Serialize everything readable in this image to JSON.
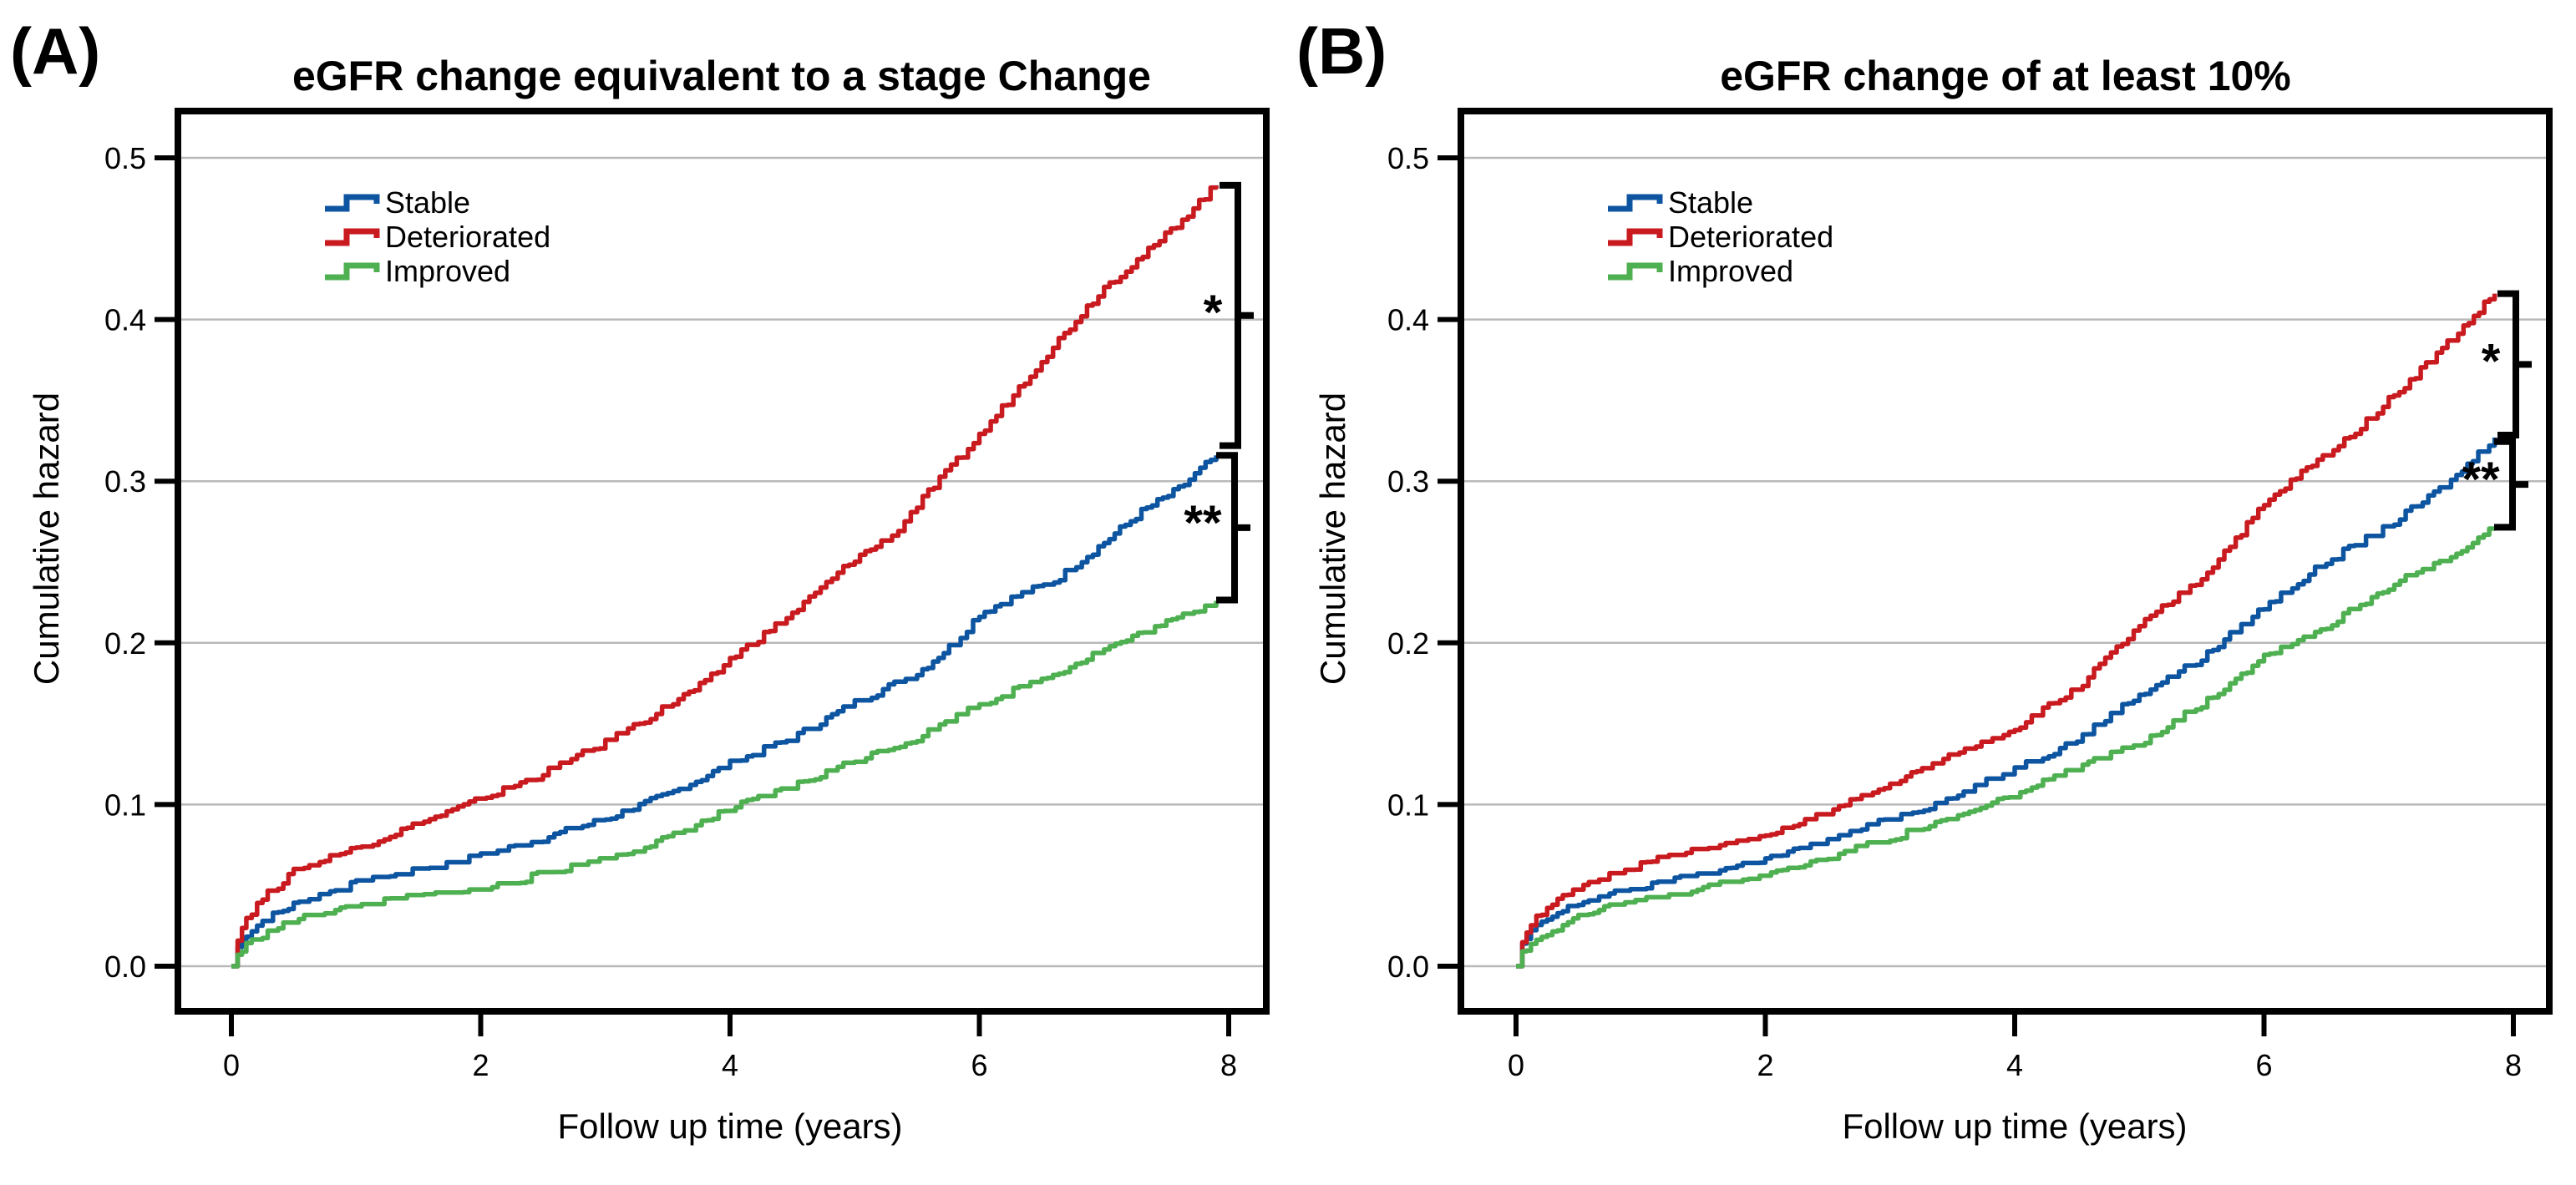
{
  "figure": {
    "background": "#ffffff",
    "colors": {
      "stable": "#0d55a0",
      "deteriorated": "#c81a1f",
      "improved": "#4fb052",
      "grid": "#b9b9b9",
      "axis": "#000000",
      "text": "#000000"
    }
  },
  "chart_data": [
    {
      "type": "line",
      "panel_letter": "(A)",
      "title": "eGFR change equivalent to a stage Change",
      "xlabel": "Follow up time (years)",
      "ylabel": "Cumulative hazard",
      "xlim": [
        0,
        8
      ],
      "ylim": [
        0,
        0.5
      ],
      "x_ticks": [
        "0",
        "2",
        "4",
        "6",
        "8"
      ],
      "y_ticks": [
        "0.0",
        "0.1",
        "0.2",
        "0.3",
        "0.4",
        "0.5"
      ],
      "grid": "horizontal-light-gray",
      "curve_style": "step-cumulative-hazard",
      "legend": {
        "position": "upper-left-inside",
        "entries": [
          "Stable",
          "Deteriorated",
          "Improved"
        ]
      },
      "series": [
        {
          "name": "Stable",
          "color_key": "stable",
          "points": [
            [
              0,
              0
            ],
            [
              0.05,
              0.012
            ],
            [
              0.12,
              0.02
            ],
            [
              0.25,
              0.028
            ],
            [
              0.5,
              0.038
            ],
            [
              0.75,
              0.045
            ],
            [
              1,
              0.051
            ],
            [
              1.5,
              0.059
            ],
            [
              2,
              0.068
            ],
            [
              2.5,
              0.079
            ],
            [
              3,
              0.091
            ],
            [
              3.5,
              0.106
            ],
            [
              4,
              0.125
            ],
            [
              4.5,
              0.141
            ],
            [
              5,
              0.163
            ],
            [
              5.5,
              0.181
            ],
            [
              5.8,
              0.2
            ],
            [
              6,
              0.218
            ],
            [
              6.3,
              0.229
            ],
            [
              6.6,
              0.238
            ],
            [
              7,
              0.262
            ],
            [
              7.3,
              0.281
            ],
            [
              7.6,
              0.295
            ],
            [
              7.9,
              0.316
            ]
          ]
        },
        {
          "name": "Deteriorated",
          "color_key": "deteriorated",
          "points": [
            [
              0,
              0
            ],
            [
              0.05,
              0.018
            ],
            [
              0.12,
              0.03
            ],
            [
              0.25,
              0.042
            ],
            [
              0.5,
              0.058
            ],
            [
              0.75,
              0.066
            ],
            [
              1,
              0.073
            ],
            [
              1.5,
              0.088
            ],
            [
              2,
              0.103
            ],
            [
              2.5,
              0.119
            ],
            [
              3,
              0.138
            ],
            [
              3.5,
              0.161
            ],
            [
              3.8,
              0.175
            ],
            [
              4,
              0.19
            ],
            [
              4.5,
              0.218
            ],
            [
              5,
              0.252
            ],
            [
              5.3,
              0.266
            ],
            [
              5.5,
              0.285
            ],
            [
              6,
              0.328
            ],
            [
              6.5,
              0.375
            ],
            [
              7,
              0.42
            ],
            [
              7.4,
              0.445
            ],
            [
              7.9,
              0.483
            ]
          ]
        },
        {
          "name": "Improved",
          "color_key": "improved",
          "points": [
            [
              0,
              0
            ],
            [
              0.05,
              0.007
            ],
            [
              0.12,
              0.013
            ],
            [
              0.25,
              0.019
            ],
            [
              0.5,
              0.028
            ],
            [
              0.75,
              0.033
            ],
            [
              1,
              0.037
            ],
            [
              1.5,
              0.043
            ],
            [
              2,
              0.047
            ],
            [
              2.5,
              0.057
            ],
            [
              3,
              0.066
            ],
            [
              3.5,
              0.079
            ],
            [
              4,
              0.097
            ],
            [
              4.5,
              0.111
            ],
            [
              5,
              0.127
            ],
            [
              5.5,
              0.141
            ],
            [
              6,
              0.162
            ],
            [
              6.5,
              0.177
            ],
            [
              7,
              0.196
            ],
            [
              7.5,
              0.212
            ],
            [
              7.9,
              0.226
            ]
          ]
        }
      ],
      "annotations": [
        {
          "symbol": "*",
          "compares": [
            "Deteriorated",
            "Stable"
          ],
          "y_from": 0.483,
          "y_to": 0.322
        },
        {
          "symbol": "**",
          "compares": [
            "Stable",
            "Improved"
          ],
          "y_from": 0.316,
          "y_to": 0.2265
        }
      ]
    },
    {
      "type": "line",
      "panel_letter": "(B)",
      "title": "eGFR change of at least 10%",
      "xlabel": "Follow up time (years)",
      "ylabel": "Cumulative hazard",
      "xlim": [
        0,
        8
      ],
      "ylim": [
        0,
        0.5
      ],
      "x_ticks": [
        "0",
        "2",
        "4",
        "6",
        "8"
      ],
      "y_ticks": [
        "0.0",
        "0.1",
        "0.2",
        "0.3",
        "0.4",
        "0.5"
      ],
      "grid": "horizontal-light-gray",
      "curve_style": "step-cumulative-hazard",
      "legend": {
        "position": "upper-left-inside",
        "entries": [
          "Stable",
          "Deteriorated",
          "Improved"
        ]
      },
      "series": [
        {
          "name": "Stable",
          "color_key": "stable",
          "points": [
            [
              0,
              0
            ],
            [
              0.05,
              0.013
            ],
            [
              0.12,
              0.021
            ],
            [
              0.25,
              0.029
            ],
            [
              0.5,
              0.039
            ],
            [
              0.75,
              0.044
            ],
            [
              1,
              0.048
            ],
            [
              1.5,
              0.057
            ],
            [
              2,
              0.066
            ],
            [
              2.5,
              0.077
            ],
            [
              3,
              0.091
            ],
            [
              3.5,
              0.104
            ],
            [
              4,
              0.122
            ],
            [
              4.5,
              0.14
            ],
            [
              5,
              0.168
            ],
            [
              5.5,
              0.19
            ],
            [
              6,
              0.222
            ],
            [
              6.5,
              0.25
            ],
            [
              7,
              0.272
            ],
            [
              7.5,
              0.3
            ],
            [
              7.85,
              0.327
            ]
          ]
        },
        {
          "name": "Deteriorated",
          "color_key": "deteriorated",
          "points": [
            [
              0,
              0
            ],
            [
              0.05,
              0.016
            ],
            [
              0.12,
              0.027
            ],
            [
              0.25,
              0.037
            ],
            [
              0.5,
              0.047
            ],
            [
              0.75,
              0.056
            ],
            [
              1,
              0.063
            ],
            [
              1.5,
              0.072
            ],
            [
              2,
              0.079
            ],
            [
              2.5,
              0.095
            ],
            [
              3,
              0.112
            ],
            [
              3.3,
              0.123
            ],
            [
              3.6,
              0.133
            ],
            [
              4,
              0.147
            ],
            [
              4.5,
              0.172
            ],
            [
              5,
              0.21
            ],
            [
              5.5,
              0.24
            ],
            [
              6,
              0.285
            ],
            [
              6.3,
              0.305
            ],
            [
              6.6,
              0.322
            ],
            [
              7,
              0.35
            ],
            [
              7.3,
              0.372
            ],
            [
              7.6,
              0.395
            ],
            [
              7.85,
              0.416
            ]
          ]
        },
        {
          "name": "Improved",
          "color_key": "improved",
          "points": [
            [
              0,
              0
            ],
            [
              0.05,
              0.008
            ],
            [
              0.12,
              0.014
            ],
            [
              0.25,
              0.021
            ],
            [
              0.5,
              0.031
            ],
            [
              0.75,
              0.036
            ],
            [
              1,
              0.04
            ],
            [
              1.5,
              0.048
            ],
            [
              2,
              0.056
            ],
            [
              2.5,
              0.067
            ],
            [
              3,
              0.079
            ],
            [
              3.5,
              0.091
            ],
            [
              4,
              0.106
            ],
            [
              4.5,
              0.122
            ],
            [
              5,
              0.138
            ],
            [
              5.5,
              0.162
            ],
            [
              6,
              0.192
            ],
            [
              6.5,
              0.21
            ],
            [
              7,
              0.235
            ],
            [
              7.5,
              0.252
            ],
            [
              7.85,
              0.271
            ]
          ]
        }
      ],
      "annotations": [
        {
          "symbol": "*",
          "compares": [
            "Deteriorated",
            "Stable"
          ],
          "y_from": 0.416,
          "y_to": 0.3285
        },
        {
          "symbol": "**",
          "compares": [
            "Stable",
            "Improved"
          ],
          "y_from": 0.3245,
          "y_to": 0.2715
        }
      ]
    }
  ]
}
